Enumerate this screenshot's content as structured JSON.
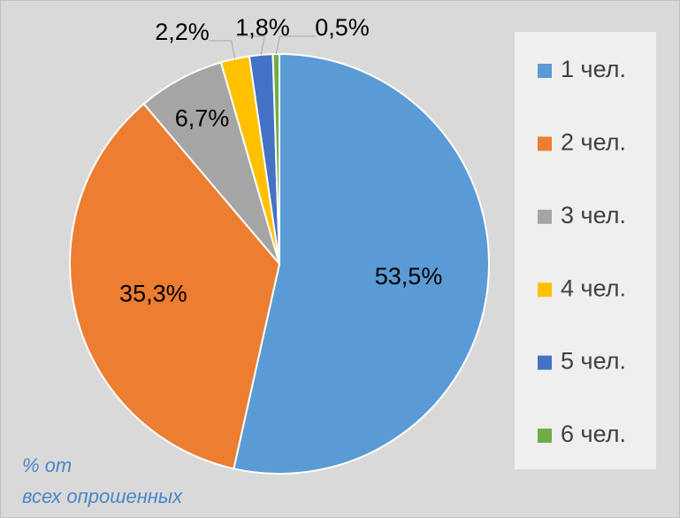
{
  "chart_data": {
    "type": "pie",
    "categories": [
      "1 чел.",
      "2 чел.",
      "3 чел.",
      "4 чел.",
      "5 чел.",
      "6 чел."
    ],
    "values": [
      53.5,
      35.3,
      6.7,
      2.2,
      1.8,
      0.5
    ],
    "value_labels": [
      "53,5%",
      "35,3%",
      "6,7%",
      "2,2%",
      "1,8%",
      "0,5%"
    ],
    "colors": [
      "#5b9bd5",
      "#ed7d31",
      "#a5a5a5",
      "#ffc000",
      "#4472c4",
      "#70ad47"
    ],
    "legend": "right",
    "annotation": [
      "% от",
      "всех опрошенных"
    ]
  }
}
